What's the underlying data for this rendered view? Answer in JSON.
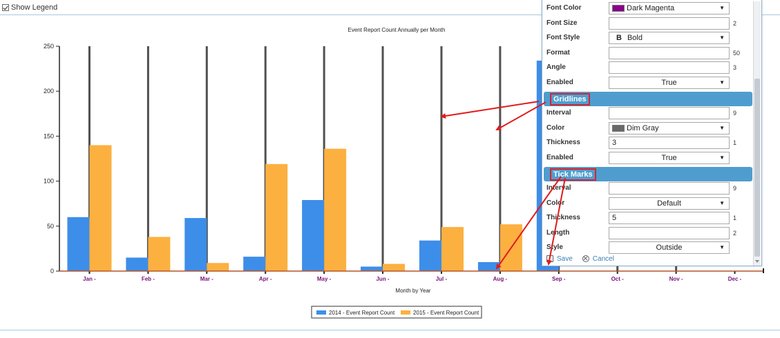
{
  "toolbar": {
    "show_legend_label": "Show Legend",
    "show_legend_checked": true
  },
  "chart_data": {
    "type": "bar",
    "title": "Event Report Count Annually per Month",
    "xlabel": "Month by Year",
    "ylabel": "",
    "ylim": [
      0,
      250
    ],
    "yticks": [
      0,
      50,
      100,
      150,
      200,
      250
    ],
    "categories": [
      "Jan -",
      "Feb -",
      "Mar -",
      "Apr -",
      "May -",
      "Jun -",
      "Jul -",
      "Aug -",
      "Sep -",
      "Oct -",
      "Nov -",
      "Dec -"
    ],
    "series": [
      {
        "name": "2014 - Event Report Count",
        "color": "#3d8ee8",
        "values": [
          60,
          15,
          59,
          16,
          79,
          5,
          34,
          10,
          234,
          null,
          null,
          null
        ]
      },
      {
        "name": "2015 - Event Report Count",
        "color": "#fcb040",
        "values": [
          140,
          38,
          9,
          119,
          136,
          8,
          49,
          52,
          null,
          null,
          null,
          null
        ]
      }
    ],
    "gridline_color": "#505050",
    "tick_label_color": "#7a0f7a",
    "legend_position": "bottom-center"
  },
  "panel": {
    "rows_top": [
      {
        "label": "Font Color",
        "value": "Dark Magenta",
        "type": "select",
        "swatch": "#8b008b",
        "num": ""
      },
      {
        "label": "Font Size",
        "value": "",
        "type": "input",
        "num": "2"
      },
      {
        "label": "Font Style",
        "value": "Bold",
        "type": "select",
        "glyph": "B",
        "num": ""
      },
      {
        "label": "Format",
        "value": "",
        "type": "input",
        "num": "50"
      },
      {
        "label": "Angle",
        "value": "",
        "type": "input",
        "num": "3"
      },
      {
        "label": "Enabled",
        "value": "True",
        "type": "select-center",
        "num": ""
      }
    ],
    "gridlines_title": "Gridlines",
    "rows_grid": [
      {
        "label": "Interval",
        "value": "",
        "type": "input",
        "num": "9"
      },
      {
        "label": "Color",
        "value": "Dim Gray",
        "type": "select",
        "swatch": "#696969",
        "num": ""
      },
      {
        "label": "Thickness",
        "value": "3",
        "type": "input",
        "num": "1"
      },
      {
        "label": "Enabled",
        "value": "True",
        "type": "select-center",
        "num": ""
      }
    ],
    "tickmarks_title": "Tick Marks",
    "rows_tick": [
      {
        "label": "Interval",
        "value": "",
        "type": "input",
        "num": "9"
      },
      {
        "label": "Color",
        "value": "Default",
        "type": "select-center",
        "num": ""
      },
      {
        "label": "Thickness",
        "value": "5",
        "type": "input",
        "num": "1"
      },
      {
        "label": "Length",
        "value": "",
        "type": "input",
        "num": "2"
      },
      {
        "label": "Style",
        "value": "Outside",
        "type": "select-center",
        "num": ""
      }
    ],
    "save_label": "Save",
    "cancel_label": "Cancel"
  }
}
